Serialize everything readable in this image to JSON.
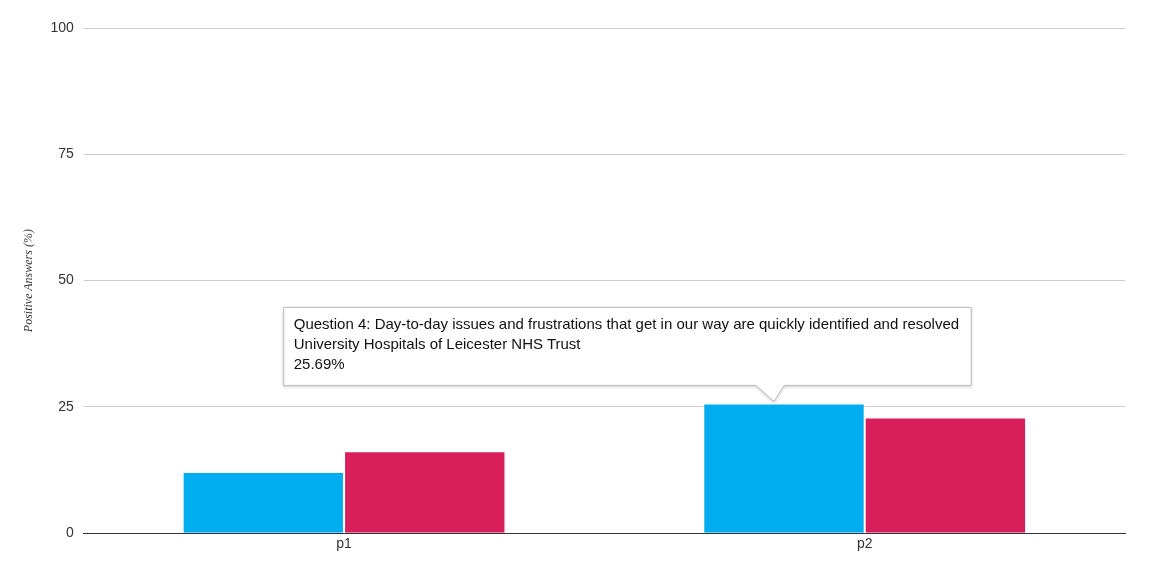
{
  "chart_data": {
    "type": "bar",
    "ylabel": "Positive Answers (%)",
    "categories": [
      "p1",
      "p2"
    ],
    "series": [
      {
        "color": "#00adef",
        "values": [
          12.1,
          25.69
        ]
      },
      {
        "color": "#d81e5b",
        "values": [
          16.2,
          22.9
        ]
      }
    ],
    "ylim": [
      0,
      100
    ],
    "yticks": [
      0,
      25,
      50,
      75,
      100
    ],
    "grid": "y",
    "legend": false,
    "annotations": [
      {
        "text": "Question 4: Day-to-day issues and frustrations that get in our way are quickly identified and resolved\nUniversity Hospitals of Leicester NHS Trust\n25.69%",
        "x": "p2",
        "y": 25.69
      }
    ]
  }
}
